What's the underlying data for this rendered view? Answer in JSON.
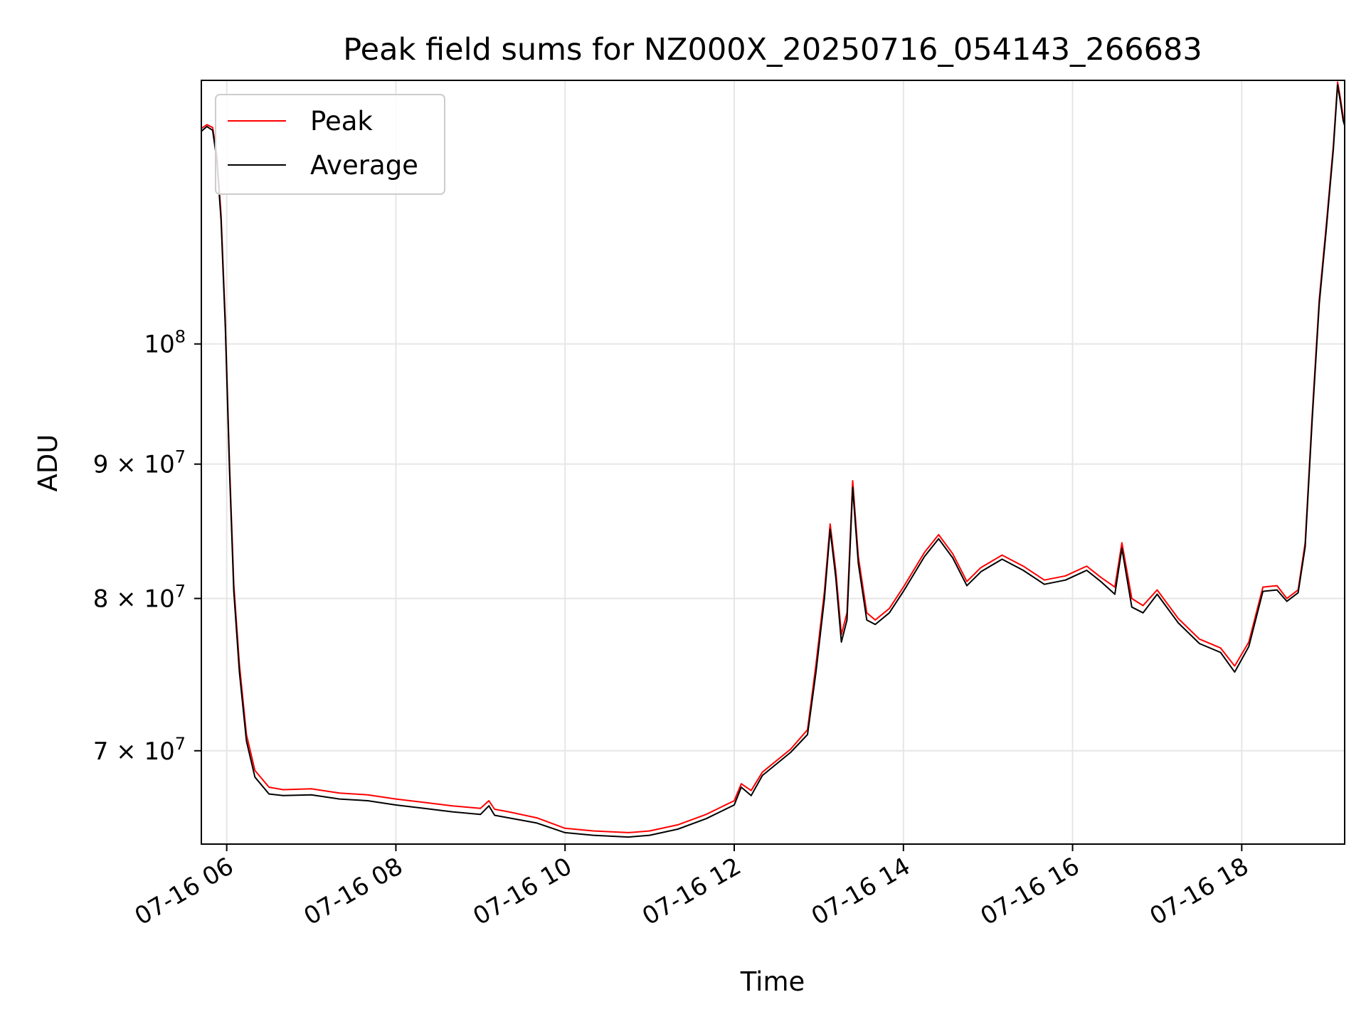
{
  "chart_data": {
    "type": "line",
    "title": "Peak field sums for NZ000X_20250716_054143_266683",
    "xlabel": "Time",
    "ylabel": "ADU",
    "y_scale": "log",
    "grid": true,
    "legend_placement": "upper-left",
    "xlim": [
      "2025-07-16T05:42",
      "2025-07-16T19:13"
    ],
    "ylim": [
      64500000,
      126000000
    ],
    "x_ticks": [
      {
        "value": "2025-07-16T06:00",
        "label": "07-16 06"
      },
      {
        "value": "2025-07-16T08:00",
        "label": "07-16 08"
      },
      {
        "value": "2025-07-16T10:00",
        "label": "07-16 10"
      },
      {
        "value": "2025-07-16T12:00",
        "label": "07-16 12"
      },
      {
        "value": "2025-07-16T14:00",
        "label": "07-16 14"
      },
      {
        "value": "2025-07-16T16:00",
        "label": "07-16 16"
      },
      {
        "value": "2025-07-16T18:00",
        "label": "07-16 18"
      }
    ],
    "y_ticks": [
      {
        "value": 70000000,
        "mantissa": "7",
        "exponent": "7"
      },
      {
        "value": 80000000,
        "mantissa": "8",
        "exponent": "7"
      },
      {
        "value": 90000000,
        "mantissa": "9",
        "exponent": "7"
      },
      {
        "value": 100000000,
        "mantissa": "",
        "exponent": "8"
      }
    ],
    "series": [
      {
        "name": "Peak",
        "color": "#ff0000",
        "points": [
          [
            "2025-07-16T05:42",
            120800000
          ],
          [
            "2025-07-16T05:46",
            121200000
          ],
          [
            "2025-07-16T05:50",
            120900000
          ],
          [
            "2025-07-16T05:53",
            118000000
          ],
          [
            "2025-07-16T05:56",
            112000000
          ],
          [
            "2025-07-16T05:59",
            102000000
          ],
          [
            "2025-07-16T06:02",
            90000000
          ],
          [
            "2025-07-16T06:05",
            81000000
          ],
          [
            "2025-07-16T06:09",
            75500000
          ],
          [
            "2025-07-16T06:14",
            71000000
          ],
          [
            "2025-07-16T06:20",
            68800000
          ],
          [
            "2025-07-16T06:30",
            67800000
          ],
          [
            "2025-07-16T06:40",
            67650000
          ],
          [
            "2025-07-16T07:00",
            67700000
          ],
          [
            "2025-07-16T07:20",
            67450000
          ],
          [
            "2025-07-16T07:40",
            67350000
          ],
          [
            "2025-07-16T08:00",
            67100000
          ],
          [
            "2025-07-16T08:20",
            66900000
          ],
          [
            "2025-07-16T08:40",
            66700000
          ],
          [
            "2025-07-16T09:00",
            66550000
          ],
          [
            "2025-07-16T09:06",
            67000000
          ],
          [
            "2025-07-16T09:10",
            66500000
          ],
          [
            "2025-07-16T09:20",
            66350000
          ],
          [
            "2025-07-16T09:40",
            66000000
          ],
          [
            "2025-07-16T10:00",
            65400000
          ],
          [
            "2025-07-16T10:20",
            65250000
          ],
          [
            "2025-07-16T10:45",
            65150000
          ],
          [
            "2025-07-16T11:00",
            65250000
          ],
          [
            "2025-07-16T11:20",
            65600000
          ],
          [
            "2025-07-16T11:40",
            66200000
          ],
          [
            "2025-07-16T12:00",
            67000000
          ],
          [
            "2025-07-16T12:05",
            68000000
          ],
          [
            "2025-07-16T12:12",
            67600000
          ],
          [
            "2025-07-16T12:20",
            68700000
          ],
          [
            "2025-07-16T12:40",
            70100000
          ],
          [
            "2025-07-16T12:52",
            71300000
          ],
          [
            "2025-07-16T12:58",
            75500000
          ],
          [
            "2025-07-16T13:04",
            80500000
          ],
          [
            "2025-07-16T13:08",
            85400000
          ],
          [
            "2025-07-16T13:12",
            82000000
          ],
          [
            "2025-07-16T13:16",
            77500000
          ],
          [
            "2025-07-16T13:20",
            79000000
          ],
          [
            "2025-07-16T13:24",
            88700000
          ],
          [
            "2025-07-16T13:28",
            83000000
          ],
          [
            "2025-07-16T13:34",
            79000000
          ],
          [
            "2025-07-16T13:40",
            78500000
          ],
          [
            "2025-07-16T13:50",
            79300000
          ],
          [
            "2025-07-16T14:00",
            80800000
          ],
          [
            "2025-07-16T14:15",
            83300000
          ],
          [
            "2025-07-16T14:25",
            84600000
          ],
          [
            "2025-07-16T14:35",
            83200000
          ],
          [
            "2025-07-16T14:45",
            81200000
          ],
          [
            "2025-07-16T14:55",
            82200000
          ],
          [
            "2025-07-16T15:10",
            83100000
          ],
          [
            "2025-07-16T15:25",
            82300000
          ],
          [
            "2025-07-16T15:40",
            81300000
          ],
          [
            "2025-07-16T15:55",
            81600000
          ],
          [
            "2025-07-16T16:10",
            82300000
          ],
          [
            "2025-07-16T16:20",
            81500000
          ],
          [
            "2025-07-16T16:30",
            80800000
          ],
          [
            "2025-07-16T16:35",
            84000000
          ],
          [
            "2025-07-16T16:42",
            80000000
          ],
          [
            "2025-07-16T16:50",
            79500000
          ],
          [
            "2025-07-16T17:00",
            80600000
          ],
          [
            "2025-07-16T17:15",
            78600000
          ],
          [
            "2025-07-16T17:30",
            77200000
          ],
          [
            "2025-07-16T17:45",
            76600000
          ],
          [
            "2025-07-16T17:55",
            75400000
          ],
          [
            "2025-07-16T18:05",
            77000000
          ],
          [
            "2025-07-16T18:15",
            80800000
          ],
          [
            "2025-07-16T18:25",
            80900000
          ],
          [
            "2025-07-16T18:32",
            80000000
          ],
          [
            "2025-07-16T18:40",
            80600000
          ],
          [
            "2025-07-16T18:45",
            84000000
          ],
          [
            "2025-07-16T18:50",
            94000000
          ],
          [
            "2025-07-16T18:55",
            104000000
          ],
          [
            "2025-07-16T19:00",
            111000000
          ],
          [
            "2025-07-16T19:05",
            119000000
          ],
          [
            "2025-07-16T19:08",
            125800000
          ],
          [
            "2025-07-16T19:10",
            124000000
          ],
          [
            "2025-07-16T19:12",
            122000000
          ],
          [
            "2025-07-16T19:13",
            121500000
          ]
        ]
      },
      {
        "name": "Average",
        "color": "#000000",
        "points": [
          [
            "2025-07-16T05:42",
            120500000
          ],
          [
            "2025-07-16T05:46",
            121000000
          ],
          [
            "2025-07-16T05:50",
            120600000
          ],
          [
            "2025-07-16T05:53",
            117500000
          ],
          [
            "2025-07-16T05:56",
            111500000
          ],
          [
            "2025-07-16T05:59",
            101500000
          ],
          [
            "2025-07-16T06:02",
            89500000
          ],
          [
            "2025-07-16T06:05",
            80500000
          ],
          [
            "2025-07-16T06:09",
            75000000
          ],
          [
            "2025-07-16T06:14",
            70600000
          ],
          [
            "2025-07-16T06:20",
            68400000
          ],
          [
            "2025-07-16T06:30",
            67400000
          ],
          [
            "2025-07-16T06:40",
            67300000
          ],
          [
            "2025-07-16T07:00",
            67350000
          ],
          [
            "2025-07-16T07:20",
            67100000
          ],
          [
            "2025-07-16T07:40",
            67000000
          ],
          [
            "2025-07-16T08:00",
            66750000
          ],
          [
            "2025-07-16T08:20",
            66550000
          ],
          [
            "2025-07-16T08:40",
            66350000
          ],
          [
            "2025-07-16T09:00",
            66200000
          ],
          [
            "2025-07-16T09:06",
            66700000
          ],
          [
            "2025-07-16T09:10",
            66150000
          ],
          [
            "2025-07-16T09:20",
            66000000
          ],
          [
            "2025-07-16T09:40",
            65700000
          ],
          [
            "2025-07-16T10:00",
            65150000
          ],
          [
            "2025-07-16T10:20",
            65000000
          ],
          [
            "2025-07-16T10:45",
            64900000
          ],
          [
            "2025-07-16T11:00",
            65000000
          ],
          [
            "2025-07-16T11:20",
            65350000
          ],
          [
            "2025-07-16T11:40",
            65950000
          ],
          [
            "2025-07-16T12:00",
            66750000
          ],
          [
            "2025-07-16T12:05",
            67800000
          ],
          [
            "2025-07-16T12:12",
            67300000
          ],
          [
            "2025-07-16T12:20",
            68500000
          ],
          [
            "2025-07-16T12:40",
            69900000
          ],
          [
            "2025-07-16T12:52",
            71000000
          ],
          [
            "2025-07-16T12:58",
            75000000
          ],
          [
            "2025-07-16T13:04",
            80000000
          ],
          [
            "2025-07-16T13:08",
            85000000
          ],
          [
            "2025-07-16T13:12",
            81500000
          ],
          [
            "2025-07-16T13:16",
            77000000
          ],
          [
            "2025-07-16T13:20",
            78500000
          ],
          [
            "2025-07-16T13:24",
            88200000
          ],
          [
            "2025-07-16T13:28",
            82500000
          ],
          [
            "2025-07-16T13:34",
            78500000
          ],
          [
            "2025-07-16T13:40",
            78200000
          ],
          [
            "2025-07-16T13:50",
            79000000
          ],
          [
            "2025-07-16T14:00",
            80500000
          ],
          [
            "2025-07-16T14:15",
            83000000
          ],
          [
            "2025-07-16T14:25",
            84300000
          ],
          [
            "2025-07-16T14:35",
            82900000
          ],
          [
            "2025-07-16T14:45",
            80900000
          ],
          [
            "2025-07-16T14:55",
            81900000
          ],
          [
            "2025-07-16T15:10",
            82800000
          ],
          [
            "2025-07-16T15:25",
            82000000
          ],
          [
            "2025-07-16T15:40",
            81000000
          ],
          [
            "2025-07-16T15:55",
            81300000
          ],
          [
            "2025-07-16T16:10",
            82000000
          ],
          [
            "2025-07-16T16:20",
            81200000
          ],
          [
            "2025-07-16T16:30",
            80300000
          ],
          [
            "2025-07-16T16:35",
            83600000
          ],
          [
            "2025-07-16T16:42",
            79400000
          ],
          [
            "2025-07-16T16:50",
            79000000
          ],
          [
            "2025-07-16T17:00",
            80300000
          ],
          [
            "2025-07-16T17:15",
            78300000
          ],
          [
            "2025-07-16T17:30",
            76900000
          ],
          [
            "2025-07-16T17:45",
            76300000
          ],
          [
            "2025-07-16T17:55",
            75000000
          ],
          [
            "2025-07-16T18:05",
            76700000
          ],
          [
            "2025-07-16T18:15",
            80500000
          ],
          [
            "2025-07-16T18:25",
            80600000
          ],
          [
            "2025-07-16T18:32",
            79800000
          ],
          [
            "2025-07-16T18:40",
            80400000
          ],
          [
            "2025-07-16T18:45",
            83700000
          ],
          [
            "2025-07-16T18:50",
            93600000
          ],
          [
            "2025-07-16T18:55",
            103600000
          ],
          [
            "2025-07-16T19:00",
            110600000
          ],
          [
            "2025-07-16T19:05",
            118600000
          ],
          [
            "2025-07-16T19:08",
            125500000
          ],
          [
            "2025-07-16T19:10",
            123600000
          ],
          [
            "2025-07-16T19:12",
            121600000
          ],
          [
            "2025-07-16T19:13",
            121100000
          ]
        ]
      }
    ]
  }
}
